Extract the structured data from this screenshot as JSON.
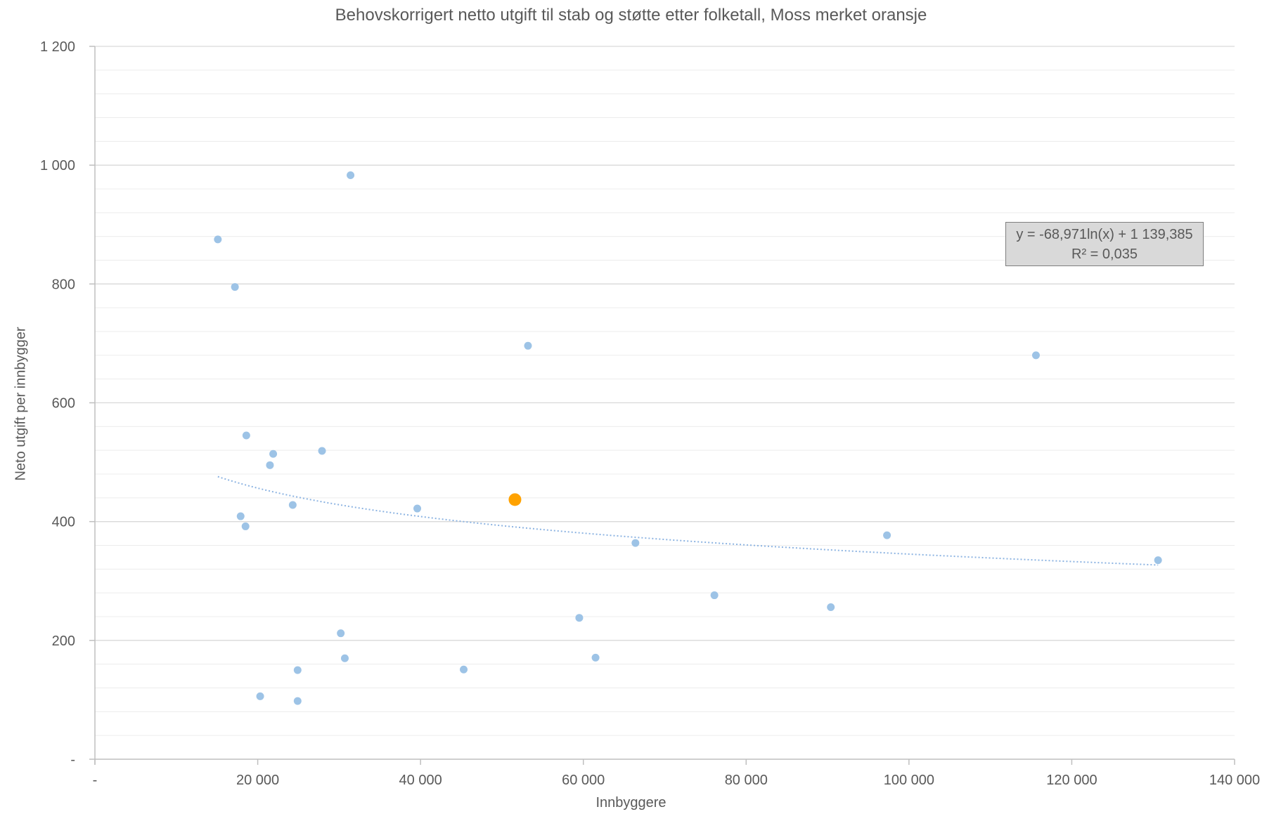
{
  "chart_data": {
    "type": "scatter",
    "title": "Behovskorrigert netto utgift til stab og støtte etter folketall, Moss merket oransje",
    "xlabel": "Innbyggere",
    "ylabel": "Neto utgift per innbygger",
    "xlim": [
      0,
      140000
    ],
    "ylim": [
      0,
      1200
    ],
    "x_ticks": [
      0,
      20000,
      40000,
      60000,
      80000,
      100000,
      120000,
      140000
    ],
    "x_tick_labels": [
      "-",
      "20 000",
      "40 000",
      "60 000",
      "80 000",
      "100 000",
      "120 000",
      "140 000"
    ],
    "y_ticks": [
      0,
      200,
      400,
      600,
      800,
      1000,
      1200
    ],
    "y_tick_labels": [
      "-",
      "200",
      "400",
      "600",
      "800",
      "1 000",
      "1 200"
    ],
    "grid": true,
    "minor_grid_step": 40,
    "colors": {
      "points": "#9dc3e6",
      "highlight": "#ffa200",
      "trendline": "#8db4e2",
      "gridline": "#d9d9d9",
      "axis": "#bfbfbf"
    },
    "series": [
      {
        "points": [
          {
            "x": 15100,
            "y": 875
          },
          {
            "x": 17200,
            "y": 795
          },
          {
            "x": 18600,
            "y": 545
          },
          {
            "x": 21900,
            "y": 514
          },
          {
            "x": 21500,
            "y": 495
          },
          {
            "x": 27900,
            "y": 519
          },
          {
            "x": 31400,
            "y": 983
          },
          {
            "x": 17900,
            "y": 409
          },
          {
            "x": 18500,
            "y": 392
          },
          {
            "x": 24300,
            "y": 428
          },
          {
            "x": 39600,
            "y": 422
          },
          {
            "x": 53200,
            "y": 696
          },
          {
            "x": 115600,
            "y": 680
          },
          {
            "x": 97300,
            "y": 377
          },
          {
            "x": 66400,
            "y": 364
          },
          {
            "x": 130600,
            "y": 335
          },
          {
            "x": 76100,
            "y": 276
          },
          {
            "x": 90400,
            "y": 256
          },
          {
            "x": 59500,
            "y": 238
          },
          {
            "x": 61500,
            "y": 171
          },
          {
            "x": 30200,
            "y": 212
          },
          {
            "x": 30700,
            "y": 170
          },
          {
            "x": 24900,
            "y": 150
          },
          {
            "x": 45300,
            "y": 151
          },
          {
            "x": 20300,
            "y": 106
          },
          {
            "x": 24900,
            "y": 98
          }
        ]
      },
      {
        "highlight": true,
        "points": [
          {
            "x": 51600,
            "y": 437
          }
        ]
      }
    ],
    "trendline": {
      "type": "logarithmic",
      "a": -68.971,
      "b": 1139.385,
      "x_range": [
        15100,
        130600
      ],
      "equation_label": "y = -68,971ln(x) + 1 139,385",
      "r2_label": "R² = 0,035"
    }
  }
}
